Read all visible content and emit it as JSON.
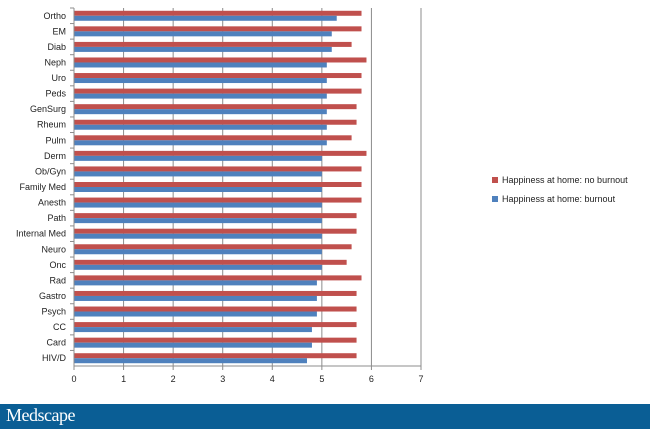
{
  "brand": {
    "name": "Medscape",
    "bar_color": "#0a5e95"
  },
  "chart_data": {
    "type": "bar",
    "orientation": "horizontal",
    "categories": [
      "Ortho",
      "EM",
      "Diab",
      "Neph",
      "Uro",
      "Peds",
      "GenSurg",
      "Rheum",
      "Pulm",
      "Derm",
      "Ob/Gyn",
      "Family Med",
      "Anesth",
      "Path",
      "Internal Med",
      "Neuro",
      "Onc",
      "Rad",
      "Gastro",
      "Psych",
      "CC",
      "Card",
      "HIV/D"
    ],
    "series": [
      {
        "name": "Happiness at home: no burnout",
        "color": "#c0504d",
        "values": [
          5.8,
          5.8,
          5.6,
          5.9,
          5.8,
          5.8,
          5.7,
          5.7,
          5.6,
          5.9,
          5.8,
          5.8,
          5.8,
          5.7,
          5.7,
          5.6,
          5.5,
          5.8,
          5.7,
          5.7,
          5.7,
          5.7,
          5.7
        ]
      },
      {
        "name": "Happiness at home: burnout",
        "color": "#4f81bd",
        "values": [
          5.3,
          5.2,
          5.2,
          5.1,
          5.1,
          5.1,
          5.1,
          5.1,
          5.1,
          5.0,
          5.0,
          5.0,
          5.0,
          5.0,
          5.0,
          5.0,
          5.0,
          4.9,
          4.9,
          4.9,
          4.8,
          4.8,
          4.7
        ]
      }
    ],
    "xlim": [
      0,
      7
    ],
    "xticks": [
      0,
      1,
      2,
      3,
      4,
      5,
      6,
      7
    ],
    "grid": true,
    "legend_position": "right",
    "title": "",
    "xlabel": "",
    "ylabel": ""
  }
}
